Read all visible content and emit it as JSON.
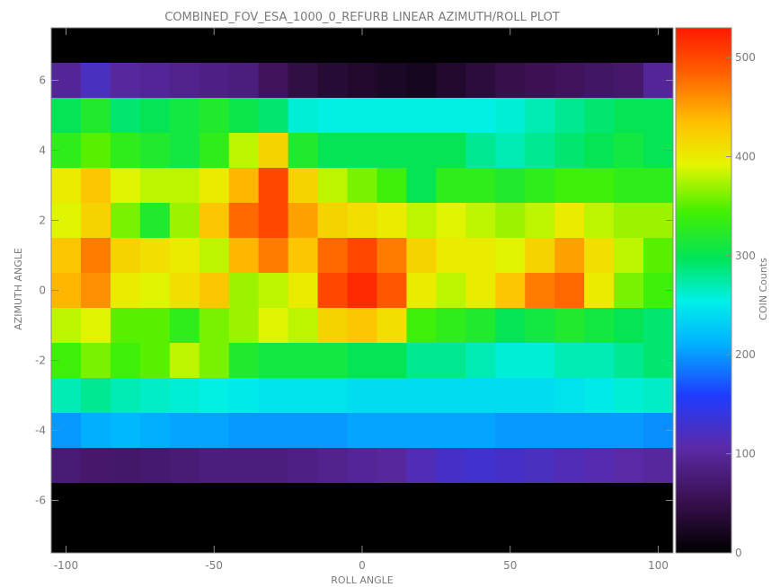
{
  "chart_data": {
    "type": "heatmap",
    "title": "COMBINED_FOV_ESA_1000_0_REFURB LINEAR AZIMUTH/ROLL PLOT",
    "xlabel": "ROLL ANGLE",
    "ylabel": "AZIMUTH ANGLE",
    "colorbar_label": "COIN Counts",
    "xlim": [
      -105,
      105
    ],
    "ylim": [
      -7.5,
      7.5
    ],
    "x_ticks": [
      -100,
      -50,
      0,
      50,
      100
    ],
    "y_ticks": [
      -6,
      -4,
      -2,
      0,
      2,
      4,
      6
    ],
    "colorbar_range": [
      0,
      530
    ],
    "colorbar_ticks": [
      0,
      100,
      200,
      300,
      400,
      500
    ],
    "colormap": "rainbow (black-purple-blue-cyan-green-yellow-orange-red)",
    "grid": false,
    "legend": "colorbar-right",
    "x_bins": [
      -100,
      -90,
      -80,
      -70,
      -60,
      -50,
      -40,
      -30,
      -20,
      -10,
      0,
      10,
      20,
      30,
      40,
      50,
      60,
      70,
      80,
      90,
      100
    ],
    "rows": [
      {
        "azimuth": 7,
        "values": [
          0,
          0,
          0,
          0,
          0,
          0,
          0,
          0,
          0,
          0,
          0,
          0,
          0,
          0,
          0,
          0,
          0,
          0,
          0,
          0,
          0
        ]
      },
      {
        "azimuth": 6,
        "values": [
          95,
          120,
          100,
          95,
          90,
          85,
          80,
          60,
          45,
          35,
          30,
          25,
          20,
          30,
          40,
          50,
          55,
          60,
          65,
          70,
          95
        ]
      },
      {
        "azimuth": 5,
        "values": [
          300,
          320,
          290,
          300,
          310,
          320,
          305,
          290,
          260,
          255,
          255,
          255,
          255,
          255,
          255,
          260,
          270,
          280,
          290,
          300,
          300
        ]
      },
      {
        "azimuth": 4,
        "values": [
          330,
          350,
          330,
          320,
          310,
          330,
          380,
          420,
          320,
          300,
          300,
          300,
          300,
          300,
          280,
          270,
          280,
          290,
          300,
          310,
          300
        ]
      },
      {
        "azimuth": 3,
        "values": [
          400,
          430,
          390,
          380,
          380,
          400,
          440,
          500,
          420,
          380,
          360,
          340,
          300,
          330,
          330,
          320,
          330,
          340,
          340,
          330,
          330
        ]
      },
      {
        "azimuth": 2,
        "values": [
          390,
          420,
          360,
          320,
          370,
          430,
          480,
          500,
          450,
          420,
          410,
          400,
          380,
          390,
          380,
          370,
          380,
          400,
          380,
          370,
          370
        ]
      },
      {
        "azimuth": 1,
        "values": [
          430,
          470,
          420,
          410,
          400,
          380,
          440,
          470,
          430,
          480,
          500,
          470,
          420,
          400,
          400,
          390,
          420,
          450,
          410,
          380,
          350
        ]
      },
      {
        "azimuth": 0,
        "values": [
          440,
          460,
          400,
          390,
          410,
          430,
          370,
          380,
          400,
          500,
          520,
          490,
          400,
          380,
          400,
          430,
          470,
          480,
          400,
          360,
          340
        ]
      },
      {
        "azimuth": -1,
        "values": [
          380,
          390,
          350,
          350,
          330,
          360,
          370,
          390,
          380,
          420,
          430,
          410,
          340,
          330,
          320,
          300,
          310,
          320,
          310,
          300,
          290
        ]
      },
      {
        "azimuth": -2,
        "values": [
          340,
          360,
          340,
          350,
          380,
          360,
          320,
          310,
          310,
          310,
          300,
          300,
          280,
          280,
          270,
          260,
          260,
          270,
          270,
          280,
          290
        ]
      },
      {
        "azimuth": -3,
        "values": [
          270,
          280,
          270,
          265,
          260,
          255,
          250,
          245,
          245,
          245,
          240,
          240,
          240,
          240,
          240,
          240,
          240,
          245,
          250,
          260,
          265
        ]
      },
      {
        "azimuth": -4,
        "values": [
          200,
          210,
          215,
          210,
          205,
          205,
          200,
          200,
          200,
          200,
          205,
          205,
          205,
          205,
          205,
          200,
          200,
          200,
          200,
          200,
          195
        ]
      },
      {
        "azimuth": -5,
        "values": [
          75,
          70,
          68,
          72,
          75,
          80,
          80,
          80,
          85,
          90,
          95,
          100,
          115,
          125,
          130,
          125,
          120,
          115,
          110,
          105,
          100
        ]
      },
      {
        "azimuth": -6,
        "values": [
          0,
          0,
          0,
          0,
          0,
          0,
          0,
          0,
          0,
          0,
          0,
          0,
          0,
          0,
          0,
          0,
          0,
          0,
          0,
          0,
          0
        ]
      },
      {
        "azimuth": -7,
        "values": [
          0,
          0,
          0,
          0,
          0,
          0,
          0,
          0,
          0,
          0,
          0,
          0,
          0,
          0,
          0,
          0,
          0,
          0,
          0,
          0,
          0
        ]
      }
    ]
  }
}
